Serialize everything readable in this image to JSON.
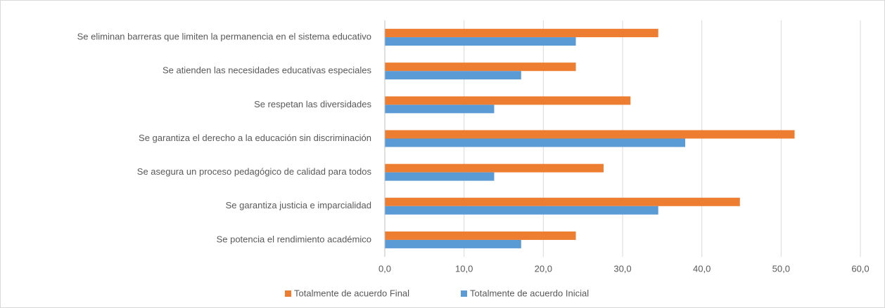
{
  "chart_data": {
    "type": "barh",
    "categories": [
      "Se eliminan barreras que limiten la permanencia en el sistema educativo",
      "Se atienden las necesidades educativas especiales",
      "Se respetan las diversidades",
      "Se garantiza el derecho a la educación sin discriminación",
      "Se asegura un proceso pedagógico de calidad para todos",
      "Se garantiza justicia e imparcialidad",
      "Se potencia el rendimiento académico"
    ],
    "series": [
      {
        "name": "Totalmente de acuerdo Final",
        "color": "#ed7d31",
        "values": [
          34.5,
          24.1,
          31.0,
          51.7,
          27.6,
          44.8,
          24.1
        ]
      },
      {
        "name": "Totalmente de acuerdo Inicial",
        "color": "#5b9bd5",
        "values": [
          24.1,
          17.2,
          13.8,
          37.9,
          13.8,
          34.5,
          17.2
        ]
      }
    ],
    "xlim": [
      0,
      60
    ],
    "xticks": [
      {
        "value": 0,
        "label": "0,0"
      },
      {
        "value": 10,
        "label": "10,0"
      },
      {
        "value": 20,
        "label": "20,0"
      },
      {
        "value": 30,
        "label": "30,0"
      },
      {
        "value": 40,
        "label": "40,0"
      },
      {
        "value": 50,
        "label": "50,0"
      },
      {
        "value": 60,
        "label": "60,0"
      }
    ],
    "grid": true,
    "legend": "bottom"
  }
}
